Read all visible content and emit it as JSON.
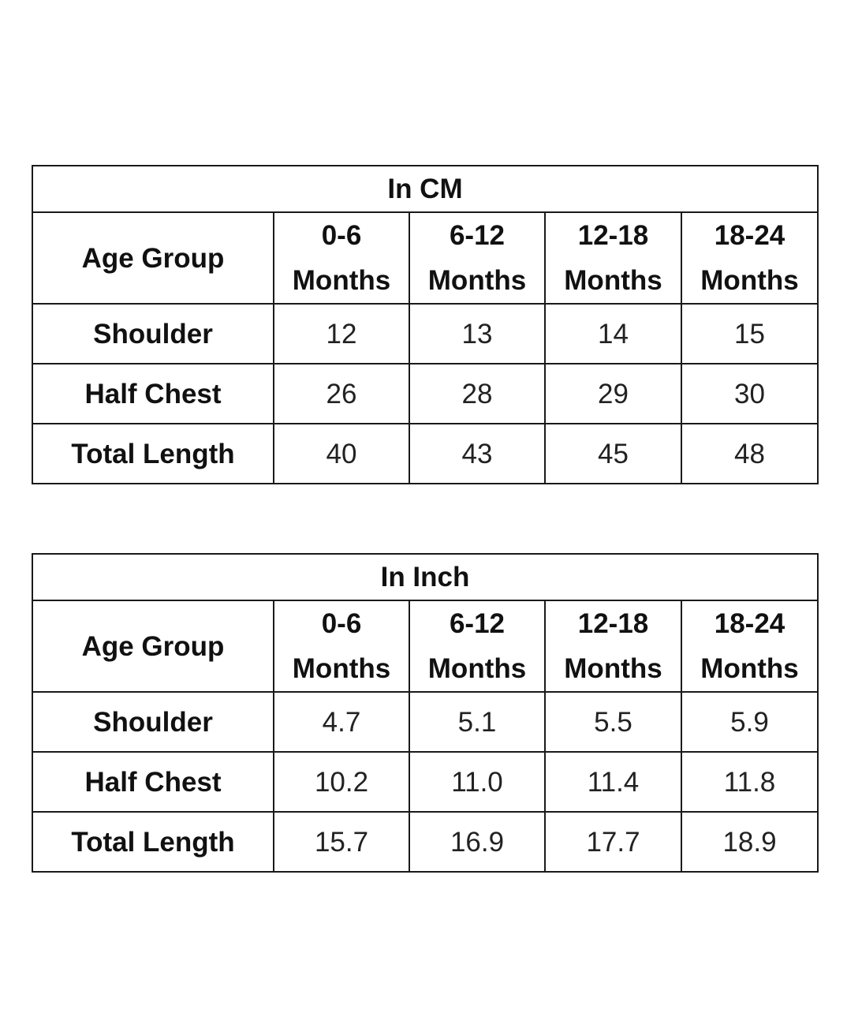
{
  "tables": [
    {
      "title": "In CM",
      "header": {
        "label": "Age Group",
        "columns": [
          {
            "range": "0-6",
            "unit": "Months"
          },
          {
            "range": "6-12",
            "unit": "Months"
          },
          {
            "range": "12-18",
            "unit": "Months"
          },
          {
            "range": "18-24",
            "unit": "Months"
          }
        ]
      },
      "rows": [
        {
          "label": "Shoulder",
          "values": [
            "12",
            "13",
            "14",
            "15"
          ]
        },
        {
          "label": "Half Chest",
          "values": [
            "26",
            "28",
            "29",
            "30"
          ]
        },
        {
          "label": "Total Length",
          "values": [
            "40",
            "43",
            "45",
            "48"
          ]
        }
      ]
    },
    {
      "title": "In Inch",
      "header": {
        "label": "Age Group",
        "columns": [
          {
            "range": "0-6",
            "unit": "Months"
          },
          {
            "range": "6-12",
            "unit": "Months"
          },
          {
            "range": "12-18",
            "unit": "Months"
          },
          {
            "range": "18-24",
            "unit": "Months"
          }
        ]
      },
      "rows": [
        {
          "label": "Shoulder",
          "values": [
            "4.7",
            "5.1",
            "5.5",
            "5.9"
          ]
        },
        {
          "label": "Half Chest",
          "values": [
            "10.2",
            "11.0",
            "11.4",
            "11.8"
          ]
        },
        {
          "label": "Total Length",
          "values": [
            "15.7",
            "16.9",
            "17.7",
            "18.9"
          ]
        }
      ]
    }
  ]
}
